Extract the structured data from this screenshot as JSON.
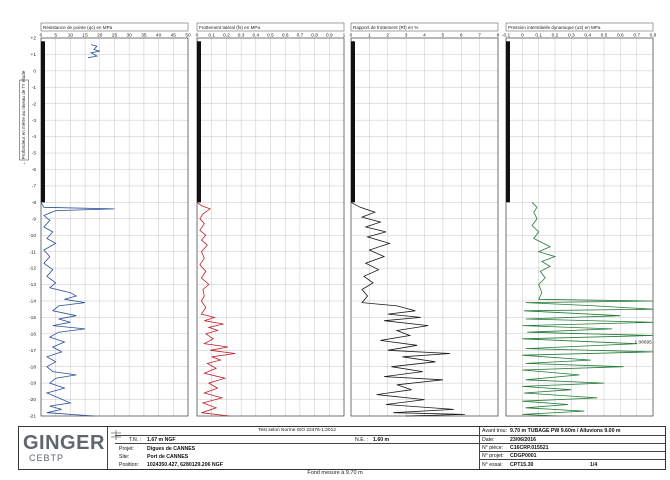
{
  "chart_data": [
    {
      "type": "line",
      "title": "Résistance de pointe (qc) en MPa",
      "xlim": [
        0,
        50
      ],
      "xticks": [
        0,
        5,
        10,
        15,
        20,
        25,
        30,
        35,
        40,
        45,
        50
      ],
      "color": "#2b4f9a",
      "series": [
        {
          "values": [
            [
              17,
              1.6
            ],
            [
              19,
              1.5
            ],
            [
              18,
              1.3
            ],
            [
              20,
              1.2
            ],
            [
              17,
              1.1
            ],
            [
              18,
              1.0
            ],
            [
              19,
              0.9
            ],
            [
              16,
              0.8
            ]
          ]
        },
        {
          "values": [
            [
              0,
              -8.0
            ],
            [
              1,
              -8.3
            ],
            [
              25,
              -8.4
            ],
            [
              5,
              -8.5
            ],
            [
              1,
              -8.8
            ],
            [
              3,
              -9.1
            ],
            [
              1,
              -9.5
            ],
            [
              4,
              -9.8
            ],
            [
              2,
              -10.2
            ],
            [
              5,
              -10.5
            ],
            [
              1,
              -10.9
            ],
            [
              3,
              -11.3
            ],
            [
              1,
              -11.7
            ],
            [
              4,
              -12.1
            ],
            [
              2,
              -12.5
            ],
            [
              5,
              -12.9
            ],
            [
              3,
              -13.2
            ],
            [
              10,
              -13.5
            ],
            [
              12,
              -13.7
            ],
            [
              8,
              -13.9
            ],
            [
              15,
              -14.1
            ],
            [
              6,
              -14.3
            ],
            [
              4,
              -14.6
            ],
            [
              12,
              -14.9
            ],
            [
              6,
              -15.1
            ],
            [
              10,
              -15.3
            ],
            [
              4,
              -15.5
            ],
            [
              15,
              -15.7
            ],
            [
              6,
              -15.9
            ],
            [
              3,
              -16.2
            ],
            [
              8,
              -16.5
            ],
            [
              4,
              -16.8
            ],
            [
              7,
              -17.1
            ],
            [
              2,
              -17.4
            ],
            [
              5,
              -17.7
            ],
            [
              2,
              -18.0
            ],
            [
              4,
              -18.3
            ],
            [
              12,
              -18.5
            ],
            [
              5,
              -18.7
            ],
            [
              3,
              -19.0
            ],
            [
              8,
              -19.3
            ],
            [
              2,
              -19.6
            ],
            [
              6,
              -19.9
            ],
            [
              10,
              -20.2
            ],
            [
              3,
              -20.4
            ],
            [
              7,
              -20.6
            ],
            [
              2,
              -20.8
            ],
            [
              18,
              -21.0
            ]
          ]
        }
      ]
    },
    {
      "type": "line",
      "title": "Frottement latéral (fs) en MPa",
      "xlim": [
        0,
        1
      ],
      "xticks": [
        0,
        0.1,
        0.2,
        0.3,
        0.4,
        0.5,
        0.6,
        0.7,
        0.8,
        0.9,
        1
      ],
      "color": "#c0202b",
      "series": [
        {
          "values": [
            [
              0,
              -8.0
            ],
            [
              0.03,
              -8.2
            ],
            [
              0.09,
              -8.4
            ],
            [
              0.04,
              -8.7
            ],
            [
              0.02,
              -9.0
            ],
            [
              0.05,
              -9.3
            ],
            [
              0.02,
              -9.7
            ],
            [
              0.06,
              -10.0
            ],
            [
              0.03,
              -10.3
            ],
            [
              0.07,
              -10.6
            ],
            [
              0.03,
              -11.0
            ],
            [
              0.05,
              -11.4
            ],
            [
              0.02,
              -11.8
            ],
            [
              0.06,
              -12.2
            ],
            [
              0.03,
              -12.6
            ],
            [
              0.08,
              -13.0
            ],
            [
              0.04,
              -13.3
            ],
            [
              0.05,
              -13.7
            ],
            [
              0.03,
              -14.0
            ],
            [
              0.06,
              -14.4
            ],
            [
              0.03,
              -14.8
            ],
            [
              0.12,
              -15.0
            ],
            [
              0.05,
              -15.2
            ],
            [
              0.18,
              -15.4
            ],
            [
              0.08,
              -15.6
            ],
            [
              0.14,
              -15.8
            ],
            [
              0.06,
              -16.0
            ],
            [
              0.11,
              -16.3
            ],
            [
              0.05,
              -16.6
            ],
            [
              0.21,
              -16.8
            ],
            [
              0.09,
              -17.0
            ],
            [
              0.26,
              -17.2
            ],
            [
              0.1,
              -17.4
            ],
            [
              0.16,
              -17.6
            ],
            [
              0.07,
              -17.8
            ],
            [
              0.13,
              -18.1
            ],
            [
              0.05,
              -18.4
            ],
            [
              0.19,
              -18.7
            ],
            [
              0.08,
              -19.0
            ],
            [
              0.14,
              -19.3
            ],
            [
              0.05,
              -19.6
            ],
            [
              0.17,
              -19.9
            ],
            [
              0.04,
              -20.2
            ],
            [
              0.13,
              -20.5
            ],
            [
              0.03,
              -20.8
            ],
            [
              0.22,
              -21.0
            ]
          ]
        }
      ]
    },
    {
      "type": "line",
      "title": "Rapport de frottement (Rf) en %",
      "xlim": [
        0,
        8
      ],
      "xticks": [
        0,
        1,
        2,
        3,
        4,
        5,
        6,
        7,
        8
      ],
      "color": "#1a1a1a",
      "series": [
        {
          "values": [
            [
              0,
              -8.0
            ],
            [
              0.5,
              -8.3
            ],
            [
              1.3,
              -8.6
            ],
            [
              0.6,
              -8.9
            ],
            [
              1.6,
              -9.2
            ],
            [
              0.8,
              -9.5
            ],
            [
              1.9,
              -9.8
            ],
            [
              0.9,
              -10.1
            ],
            [
              2.1,
              -10.5
            ],
            [
              1.0,
              -10.9
            ],
            [
              1.8,
              -11.3
            ],
            [
              0.8,
              -11.7
            ],
            [
              1.5,
              -12.1
            ],
            [
              0.7,
              -12.5
            ],
            [
              1.2,
              -12.9
            ],
            [
              0.6,
              -13.3
            ],
            [
              0.9,
              -13.7
            ],
            [
              0.6,
              -14.1
            ],
            [
              2.5,
              -14.3
            ],
            [
              3.5,
              -14.6
            ],
            [
              2.0,
              -14.8
            ],
            [
              3.8,
              -15.0
            ],
            [
              1.8,
              -15.2
            ],
            [
              4.2,
              -15.5
            ],
            [
              2.5,
              -15.8
            ],
            [
              3.2,
              -16.1
            ],
            [
              1.6,
              -16.4
            ],
            [
              3.6,
              -16.7
            ],
            [
              2.0,
              -17.0
            ],
            [
              5.4,
              -17.2
            ],
            [
              2.8,
              -17.4
            ],
            [
              4.6,
              -17.7
            ],
            [
              2.2,
              -18.0
            ],
            [
              3.9,
              -18.3
            ],
            [
              1.8,
              -18.6
            ],
            [
              5.0,
              -18.8
            ],
            [
              2.5,
              -19.1
            ],
            [
              3.3,
              -19.4
            ],
            [
              1.4,
              -19.7
            ],
            [
              4.0,
              -20.0
            ],
            [
              1.9,
              -20.3
            ],
            [
              5.6,
              -20.6
            ],
            [
              2.3,
              -20.8
            ],
            [
              6.2,
              -20.9
            ],
            [
              3.0,
              -21.0
            ]
          ]
        }
      ]
    },
    {
      "type": "line",
      "title": "Pression interstitielle dynamique (u2) en MPa",
      "xlim": [
        -0.1,
        0.8
      ],
      "xticks": [
        -0.1,
        0,
        0.1,
        0.2,
        0.3,
        0.4,
        0.5,
        0.6,
        0.7,
        0.8
      ],
      "color": "#237a36",
      "annotations": [
        {
          "text": "1.08695",
          "x": 0.74,
          "y": -16.6
        }
      ],
      "series": [
        {
          "values": [
            [
              0.06,
              -8.0
            ],
            [
              0.09,
              -8.3
            ],
            [
              0.07,
              -8.6
            ],
            [
              0.09,
              -9.0
            ],
            [
              0.06,
              -9.4
            ],
            [
              0.1,
              -9.8
            ],
            [
              0.07,
              -10.2
            ],
            [
              0.13,
              -10.5
            ],
            [
              0.17,
              -10.7
            ],
            [
              0.1,
              -11.0
            ],
            [
              0.2,
              -11.3
            ],
            [
              0.12,
              -11.6
            ],
            [
              0.17,
              -11.9
            ],
            [
              0.11,
              -12.2
            ],
            [
              0.14,
              -12.6
            ],
            [
              0.1,
              -13.0
            ],
            [
              0.12,
              -13.5
            ],
            [
              0.1,
              -13.9
            ],
            [
              0.8,
              -14.0
            ],
            [
              0.02,
              -14.1
            ],
            [
              0.45,
              -14.3
            ],
            [
              0.8,
              -14.5
            ],
            [
              0.01,
              -14.6
            ],
            [
              0.6,
              -14.9
            ],
            [
              0.02,
              -15.1
            ],
            [
              0.8,
              -15.3
            ],
            [
              0.0,
              -15.5
            ],
            [
              0.55,
              -15.7
            ],
            [
              0.03,
              -15.9
            ],
            [
              0.8,
              -16.1
            ],
            [
              0.0,
              -16.3
            ],
            [
              0.7,
              -16.6
            ],
            [
              0.02,
              -16.9
            ],
            [
              0.8,
              -17.1
            ],
            [
              0.0,
              -17.3
            ],
            [
              0.42,
              -17.6
            ],
            [
              0.02,
              -17.8
            ],
            [
              0.62,
              -18.0
            ],
            [
              0.0,
              -18.2
            ],
            [
              0.35,
              -18.5
            ],
            [
              0.02,
              -18.8
            ],
            [
              0.5,
              -19.0
            ],
            [
              0.0,
              -19.2
            ],
            [
              0.3,
              -19.4
            ],
            [
              0.01,
              -19.6
            ],
            [
              0.46,
              -19.9
            ],
            [
              0.0,
              -20.1
            ],
            [
              0.28,
              -20.3
            ],
            [
              0.02,
              -20.5
            ],
            [
              0.38,
              -20.7
            ],
            [
              0.0,
              -20.9
            ],
            [
              0.22,
              -21.0
            ]
          ]
        }
      ]
    }
  ],
  "depth_axis": {
    "ylim": [
      -21,
      2
    ],
    "ticks": [
      "+2",
      "+1",
      "0",
      "-1",
      "-2",
      "-3",
      "-4",
      "-5",
      "-6",
      "-7",
      "-8",
      "-9",
      "-10",
      "-11",
      "-12",
      "-13",
      "-14",
      "-15",
      "-16",
      "-17",
      "-18",
      "-19",
      "-20",
      "-21"
    ],
    "label": "← Profondeur en mètre au niveau de l'Y étude",
    "grid": true
  },
  "titleblock": {
    "logo_name": "GINGER",
    "logo_sub": "CEBTP",
    "norm": "Test selon Norme ISO 22476-1:2012",
    "tn_label": "T.N. :",
    "tn_value": "1.67 m NGF",
    "ne_label": "N.E. :",
    "ne_value": "1.60 m",
    "projet_label": "Projet:",
    "projet_value": "Digues de CANNES",
    "site_label": "Site:",
    "site_value": "Port de CANNES",
    "position_label": "Position:",
    "position_value": "1024350.427, 6280129.206 NGF",
    "avant_trou_label": "Avant trou:",
    "avant_trou_value": "9.70 m TUBAGE PW 9.60m / Alluvions 9.00 m",
    "date_label": "Date:",
    "date_value": "23/06/2016",
    "piece_label": "N° pièce:",
    "piece_value": "C16CRP.015521",
    "projet_no_label": "N° projet:",
    "projet_no_value": "CDGP0001",
    "essai_label": "N° essai:",
    "essai_value": "CPT15.30",
    "page": "1/4"
  },
  "bottom_note": "Fond mesure à 9.70 m"
}
